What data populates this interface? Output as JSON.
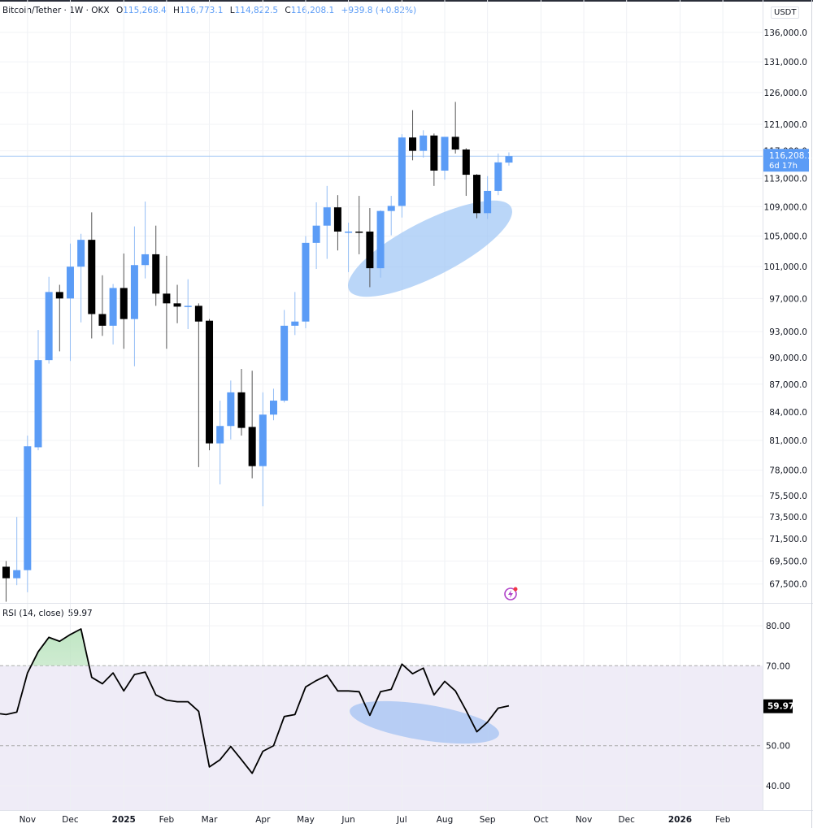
{
  "header": {
    "symbol": "Bitcoin/Tether · 1W · OKX",
    "open_label": "O",
    "open": "115,268.4",
    "high_label": "H",
    "high": "116,773.1",
    "low_label": "L",
    "low": "114,822.5",
    "close_label": "C",
    "close": "116,208.1",
    "change": "+939.8 (+0.82%)"
  },
  "currency": "USDT",
  "price_label": {
    "value": "116,208.1",
    "countdown": "6d 17h"
  },
  "rsi": {
    "title": "RSI (14, close)",
    "value": "59.97",
    "label": "59.97"
  },
  "colors": {
    "up": "#5b9cf6",
    "down": "#000000",
    "highlight": "#9cc5f5",
    "rsi_band": "#efecf7",
    "rsi_line": "#000000",
    "overbought_fill": "#b9e3bd"
  },
  "icons": {
    "alert": "lightning-alert-icon"
  },
  "chart_data": [
    {
      "type": "candlestick",
      "title": "Bitcoin/Tether · 1W · OKX",
      "yscale": "log",
      "ylim": [
        65900,
        141700
      ],
      "xlim": [
        "2024-10-17",
        "2026-02-28"
      ],
      "grid": true,
      "y_ticks": [
        "136,000.0",
        "131,000.0",
        "126,000.0",
        "121,000.0",
        "117,000.0",
        "113,000.0",
        "109,000.0",
        "105,000.0",
        "101,000.0",
        "97,000.0",
        "93,000.0",
        "90,000.0",
        "87,000.0",
        "84,000.0",
        "81,000.0",
        "78,000.0",
        "75,500.0",
        "73,500.0",
        "71,500.0",
        "69,500.0",
        "67,500.0"
      ],
      "x_ticks": [
        {
          "label": "Nov",
          "date": "2024-11-04"
        },
        {
          "label": "Dec",
          "date": "2024-12-02"
        },
        {
          "label": "2025",
          "date": "2025-01-06"
        },
        {
          "label": "Feb",
          "date": "2025-02-03"
        },
        {
          "label": "Mar",
          "date": "2025-03-03"
        },
        {
          "label": "Apr",
          "date": "2025-04-07"
        },
        {
          "label": "May",
          "date": "2025-05-05"
        },
        {
          "label": "Jun",
          "date": "2025-06-02"
        },
        {
          "label": "Jul",
          "date": "2025-07-07"
        },
        {
          "label": "Aug",
          "date": "2025-08-04"
        },
        {
          "label": "Sep",
          "date": "2025-09-01"
        },
        {
          "label": "Oct",
          "date": "2025-10-06"
        },
        {
          "label": "Nov",
          "date": "2025-11-03"
        },
        {
          "label": "Dec",
          "date": "2025-12-01"
        },
        {
          "label": "2026",
          "date": "2026-01-05"
        },
        {
          "label": "Feb",
          "date": "2026-02-02"
        }
      ],
      "current_price": 116208.1,
      "candles_columns": [
        "date",
        "open",
        "high",
        "low",
        "close"
      ],
      "candles": [
        [
          "2024-10-21",
          69000,
          69500,
          66000,
          68000
        ],
        [
          "2024-10-28",
          68000,
          73500,
          67400,
          68700
        ],
        [
          "2024-11-04",
          68700,
          81500,
          66800,
          80400
        ],
        [
          "2024-11-11",
          80300,
          93200,
          80000,
          89700
        ],
        [
          "2024-11-18",
          89700,
          99700,
          89300,
          97800
        ],
        [
          "2024-11-25",
          97800,
          98700,
          90700,
          97000
        ],
        [
          "2024-12-02",
          97000,
          104000,
          89600,
          101000
        ],
        [
          "2024-12-09",
          101000,
          105300,
          94100,
          104500
        ],
        [
          "2024-12-16",
          104500,
          108200,
          92200,
          95100
        ],
        [
          "2024-12-23",
          95100,
          99900,
          92500,
          93700
        ],
        [
          "2024-12-30",
          93700,
          98800,
          91500,
          98300
        ],
        [
          "2025-01-06",
          98300,
          102700,
          91000,
          94500
        ],
        [
          "2025-01-13",
          94500,
          106300,
          89000,
          101200
        ],
        [
          "2025-01-20",
          101200,
          109700,
          99500,
          102600
        ],
        [
          "2025-01-27",
          102600,
          106400,
          96100,
          97600
        ],
        [
          "2025-02-03",
          97600,
          102400,
          91000,
          96400
        ],
        [
          "2025-02-10",
          96400,
          98700,
          94000,
          96000
        ],
        [
          "2025-02-17",
          96000,
          99400,
          93300,
          96100
        ],
        [
          "2025-02-24",
          96100,
          96400,
          78300,
          94200
        ],
        [
          "2025-03-03",
          94300,
          94500,
          80000,
          80700
        ],
        [
          "2025-03-10",
          80700,
          85200,
          76600,
          82500
        ],
        [
          "2025-03-17",
          82500,
          87400,
          81100,
          86100
        ],
        [
          "2025-03-24",
          86100,
          88700,
          81500,
          82300
        ],
        [
          "2025-03-31",
          82400,
          88500,
          77200,
          78400
        ],
        [
          "2025-04-07",
          78400,
          86100,
          74500,
          83700
        ],
        [
          "2025-04-14",
          83700,
          86500,
          83100,
          85200
        ],
        [
          "2025-04-21",
          85200,
          95600,
          85000,
          93700
        ],
        [
          "2025-04-28",
          93700,
          97800,
          92600,
          94200
        ],
        [
          "2025-05-05",
          94200,
          105000,
          93400,
          104100
        ],
        [
          "2025-05-12",
          104100,
          109600,
          100700,
          106400
        ],
        [
          "2025-05-19",
          106400,
          111900,
          102000,
          108900
        ],
        [
          "2025-05-26",
          108900,
          110600,
          103100,
          105600
        ],
        [
          "2025-06-02",
          105500,
          106800,
          100300,
          105600
        ],
        [
          "2025-06-09",
          105600,
          110500,
          102600,
          105500
        ],
        [
          "2025-06-16",
          105600,
          108800,
          98400,
          100800
        ],
        [
          "2025-06-23",
          100800,
          108500,
          99600,
          108400
        ],
        [
          "2025-06-30",
          108400,
          110500,
          105100,
          109100
        ],
        [
          "2025-07-07",
          109100,
          119500,
          107500,
          119000
        ],
        [
          "2025-07-14",
          119000,
          123200,
          115600,
          117000
        ],
        [
          "2025-07-21",
          117000,
          120100,
          116000,
          119300
        ],
        [
          "2025-07-28",
          119300,
          119600,
          111900,
          114100
        ],
        [
          "2025-08-04",
          114100,
          119100,
          112800,
          119100
        ],
        [
          "2025-08-11",
          119100,
          124500,
          116600,
          117200
        ],
        [
          "2025-08-18",
          117200,
          117400,
          110500,
          113500
        ],
        [
          "2025-08-25",
          113500,
          113600,
          107400,
          108100
        ],
        [
          "2025-09-01",
          108100,
          113300,
          107300,
          111200
        ],
        [
          "2025-09-08",
          111200,
          116600,
          110600,
          115300
        ],
        [
          "2025-09-15",
          115268.4,
          116773.1,
          114822.5,
          116208.1
        ]
      ]
    },
    {
      "type": "line",
      "title": "RSI (14, close)",
      "ylim": [
        33.9,
        85.5
      ],
      "y_ticks": [
        "80.00",
        "70.00",
        "50.00",
        "40.00"
      ],
      "bands": {
        "upper": 70,
        "middle": 50
      },
      "x": "same dates as candles",
      "values": [
        57.8,
        58.4,
        68.2,
        73.5,
        77.1,
        76.1,
        77.8,
        79.2,
        67.1,
        65.5,
        68.2,
        63.7,
        67.8,
        68.4,
        62.7,
        61.4,
        61.0,
        61.0,
        58.6,
        44.7,
        46.5,
        49.8,
        46.5,
        43.1,
        48.6,
        50.0,
        57.3,
        57.8,
        64.7,
        66.3,
        67.6,
        63.7,
        63.7,
        63.5,
        57.6,
        63.5,
        64.1,
        70.4,
        68.0,
        69.4,
        62.7,
        66.1,
        63.7,
        58.8,
        53.5,
        55.9,
        59.4,
        59.97
      ]
    }
  ]
}
